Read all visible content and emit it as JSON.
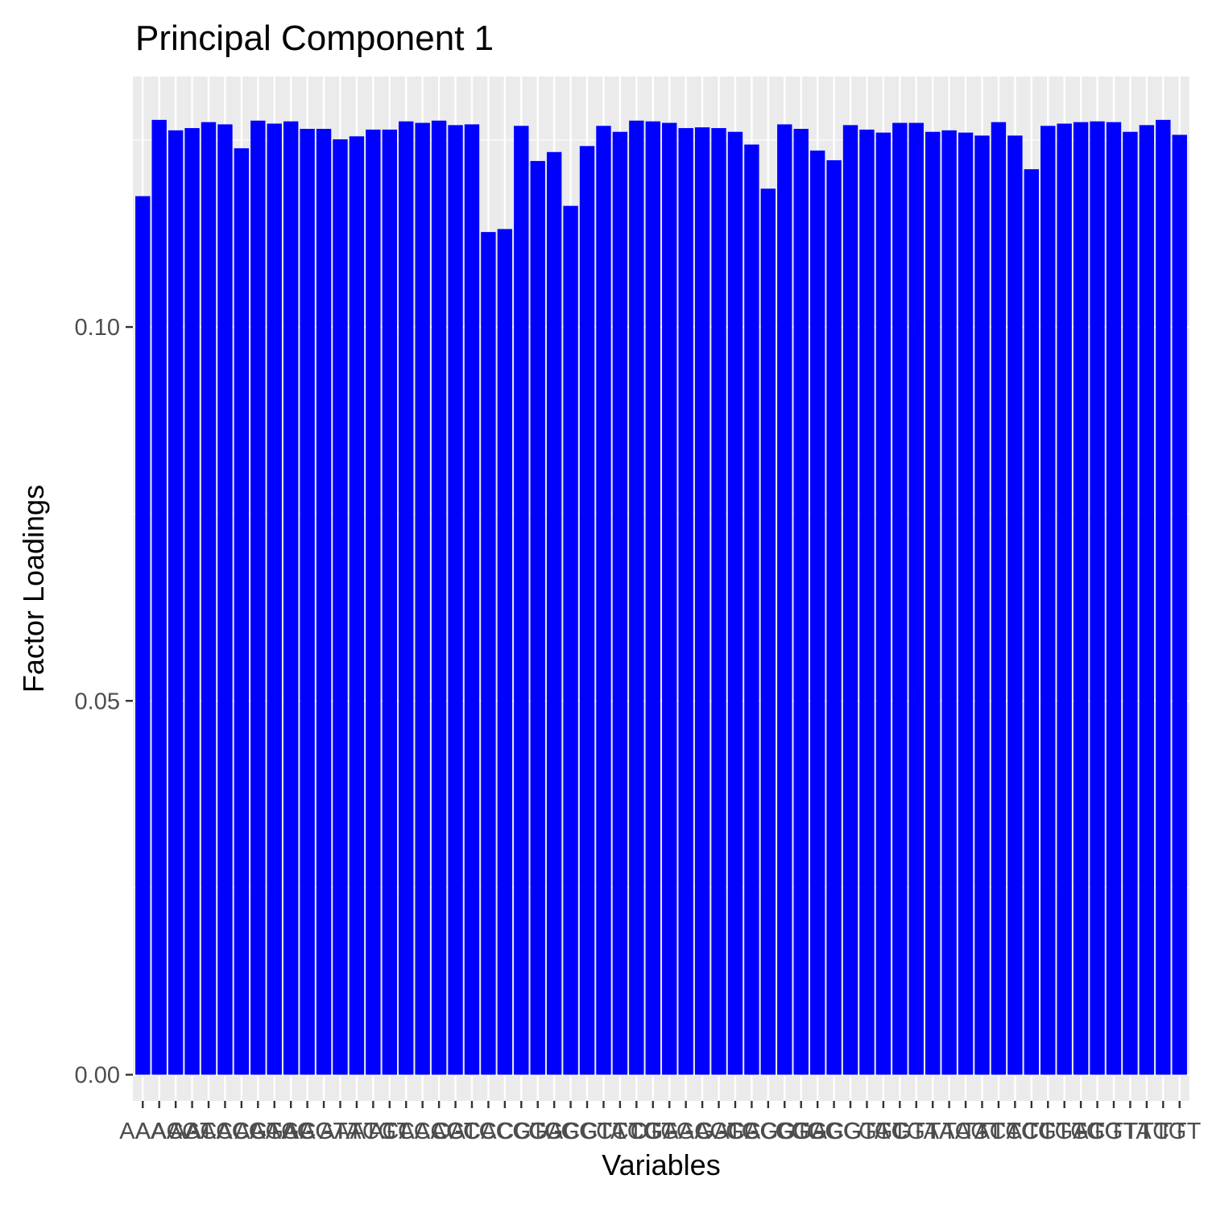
{
  "chart_data": {
    "type": "bar",
    "title": "Principal Component 1",
    "xlabel": "Variables",
    "ylabel": "Factor Loadings",
    "ylim": [
      -0.0035,
      0.1335
    ],
    "yticks": [
      0.0,
      0.05,
      0.1
    ],
    "ytick_labels": [
      "0.00",
      "0.05",
      "0.10"
    ],
    "grid": true,
    "bar_color": "#0000ff",
    "panel_color": "#ebebeb",
    "categories": [
      "AAA",
      "AAC",
      "AAG",
      "AAT",
      "ACA",
      "ACC",
      "ACG",
      "ACT",
      "AGA",
      "AGC",
      "AGG",
      "AGT",
      "ATA",
      "ATC",
      "ATG",
      "ATT",
      "CAA",
      "CAC",
      "CAG",
      "CAT",
      "CCA",
      "CCC",
      "CCG",
      "CCT",
      "CGA",
      "CGC",
      "CGG",
      "CGT",
      "CTA",
      "CTC",
      "CTG",
      "CTT",
      "GAA",
      "GAC",
      "GAG",
      "GAT",
      "GCA",
      "GCC",
      "GCG",
      "GCT",
      "GGA",
      "GGC",
      "GGG",
      "GGT",
      "GTA",
      "GTC",
      "GTG",
      "GTT",
      "TAA",
      "TAC",
      "TAG",
      "TAT",
      "TCA",
      "TCC",
      "TCG",
      "TCT",
      "TGA",
      "TGC",
      "TGG",
      "TGT",
      "TTA",
      "TTC",
      "TTG",
      "TTT"
    ],
    "values": [
      0.1175,
      0.1277,
      0.1263,
      0.1266,
      0.1274,
      0.1271,
      0.1239,
      0.1276,
      0.1272,
      0.1275,
      0.1265,
      0.1265,
      0.1251,
      0.1255,
      0.1264,
      0.1264,
      0.1275,
      0.1273,
      0.1276,
      0.127,
      0.1271,
      0.1127,
      0.1131,
      0.1269,
      0.1222,
      0.1234,
      0.1162,
      0.1242,
      0.1269,
      0.1261,
      0.1276,
      0.1275,
      0.1273,
      0.1266,
      0.1267,
      0.1266,
      0.1261,
      0.1244,
      0.1185,
      0.1271,
      0.1265,
      0.1236,
      0.1223,
      0.127,
      0.1264,
      0.126,
      0.1273,
      0.1273,
      0.1261,
      0.1263,
      0.126,
      0.1256,
      0.1274,
      0.1256,
      0.1211,
      0.1269,
      0.1272,
      0.1274,
      0.1275,
      0.1274,
      0.1261,
      0.127,
      0.1277,
      0.1257
    ]
  }
}
